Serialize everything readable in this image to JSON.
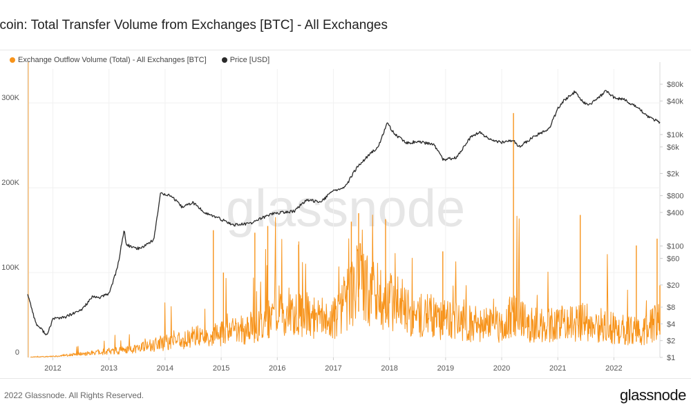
{
  "page": {
    "title": "itcoin: Total Transfer Volume from Exchanges [BTC] - All Exchanges",
    "copyright": "2022 Glassnode. All Rights Reserved.",
    "logo": "glassnode",
    "watermark": "glassnode"
  },
  "chart_data": {
    "type": "line",
    "title": "itcoin: Total Transfer Volume from Exchanges [BTC] - All Exchanges",
    "x_range": [
      2011.55,
      2022.82
    ],
    "x_ticks": [
      "2012",
      "2013",
      "2014",
      "2015",
      "2016",
      "2017",
      "2018",
      "2019",
      "2020",
      "2021",
      "2022"
    ],
    "legend": {
      "placement": "top-left"
    },
    "grid": true,
    "y_left": {
      "range": [
        0,
        340000
      ],
      "ticks": [
        0,
        100000,
        200000,
        300000
      ],
      "tick_labels": [
        "0",
        "100K",
        "200K",
        "300K"
      ]
    },
    "y_right": {
      "scale": "log",
      "range": [
        1,
        150000
      ],
      "ticks": [
        1,
        2,
        4,
        8,
        20,
        60,
        100,
        400,
        800,
        2000,
        6000,
        10000,
        40000,
        80000
      ],
      "tick_labels": [
        "$1",
        "$2",
        "$4",
        "$8",
        "$20",
        "$60",
        "$100",
        "$400",
        "$800",
        "$2k",
        "$6k",
        "$10k",
        "$40k",
        "$80k"
      ]
    },
    "series": [
      {
        "name": "Exchange Outflow Volume (Total) - All Exchanges [BTC]",
        "axis": "left",
        "color": "#f7931a",
        "x": [
          2011.6,
          2012.0,
          2012.5,
          2013.0,
          2013.5,
          2014.0,
          2014.5,
          2015.0,
          2015.5,
          2016.0,
          2016.5,
          2017.0,
          2017.45,
          2017.6,
          2018.0,
          2018.5,
          2019.0,
          2019.5,
          2020.0,
          2020.21,
          2020.5,
          2021.0,
          2021.5,
          2022.0,
          2022.5,
          2022.8
        ],
        "y": [
          400,
          1200,
          4000,
          7000,
          10000,
          18000,
          24000,
          28000,
          34000,
          48000,
          50000,
          44000,
          90000,
          78000,
          66000,
          52000,
          44000,
          40000,
          38000,
          50000,
          38000,
          40000,
          42000,
          34000,
          30000,
          45000
        ],
        "peaks": [
          {
            "x": 2014.86,
            "y": 150000
          },
          {
            "x": 2015.04,
            "y": 100000
          },
          {
            "x": 2015.6,
            "y": 147000
          },
          {
            "x": 2015.83,
            "y": 155000
          },
          {
            "x": 2016.38,
            "y": 133000
          },
          {
            "x": 2017.32,
            "y": 160000
          },
          {
            "x": 2017.45,
            "y": 170000
          },
          {
            "x": 2017.93,
            "y": 163000
          },
          {
            "x": 2018.95,
            "y": 125000
          },
          {
            "x": 2020.21,
            "y": 288000
          },
          {
            "x": 2021.4,
            "y": 168000
          },
          {
            "x": 2022.4,
            "y": 132000
          },
          {
            "x": 2022.77,
            "y": 140000
          },
          {
            "x": 2022.82,
            "y": 85000
          }
        ]
      },
      {
        "name": "Price [USD]",
        "axis": "right",
        "color": "#2a2a2a",
        "x": [
          2011.55,
          2011.7,
          2011.9,
          2012.0,
          2012.2,
          2012.5,
          2012.7,
          2012.85,
          2013.0,
          2013.15,
          2013.27,
          2013.3,
          2013.4,
          2013.55,
          2013.8,
          2013.92,
          2014.1,
          2014.3,
          2014.5,
          2014.7,
          2015.0,
          2015.2,
          2015.5,
          2015.9,
          2016.3,
          2016.5,
          2016.8,
          2017.0,
          2017.2,
          2017.4,
          2017.6,
          2017.8,
          2017.96,
          2018.1,
          2018.3,
          2018.5,
          2018.8,
          2018.96,
          2019.2,
          2019.45,
          2019.6,
          2019.8,
          2020.0,
          2020.2,
          2020.3,
          2020.6,
          2020.85,
          2021.0,
          2021.1,
          2021.3,
          2021.45,
          2021.55,
          2021.75,
          2021.86,
          2022.0,
          2022.2,
          2022.45,
          2022.6,
          2022.82
        ],
        "y": [
          14,
          4,
          2.5,
          5,
          5.2,
          7,
          12,
          12,
          14,
          40,
          200,
          110,
          95,
          90,
          130,
          900,
          800,
          500,
          600,
          400,
          300,
          240,
          250,
          380,
          420,
          650,
          640,
          1000,
          1100,
          2400,
          4000,
          6000,
          16000,
          10000,
          7000,
          7500,
          6500,
          3500,
          3900,
          9000,
          11000,
          8000,
          7200,
          8000,
          6000,
          9500,
          13000,
          29000,
          40000,
          58000,
          38000,
          33000,
          48000,
          62000,
          46000,
          42000,
          29000,
          21000,
          16500
        ]
      }
    ]
  }
}
